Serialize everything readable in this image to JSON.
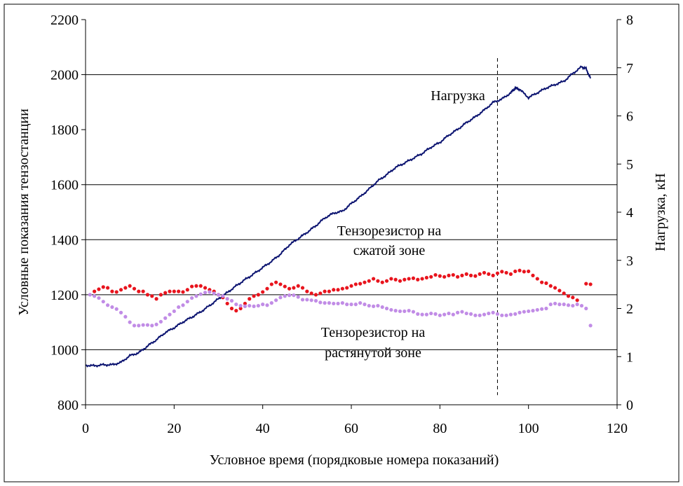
{
  "chart_data": {
    "type": "line",
    "title": "",
    "xlabel": "Условное время (порядковые номера показаний)",
    "ylabel_left": "Условные показания тензостанции",
    "ylabel_right": "Нагрузка, кН",
    "xlim": [
      0,
      120
    ],
    "ylim_left": [
      800,
      2200
    ],
    "ylim_right": [
      0,
      8
    ],
    "x_ticks": [
      0,
      20,
      40,
      60,
      80,
      100,
      120
    ],
    "y_left_ticks": [
      800,
      1000,
      1200,
      1400,
      1600,
      1800,
      2000,
      2200
    ],
    "y_right_ticks": [
      0,
      1,
      2,
      3,
      4,
      5,
      6,
      7,
      8
    ],
    "gridlines_left": [
      1000,
      1200,
      1400,
      1600,
      2000
    ],
    "marker_x": 93,
    "series": [
      {
        "name": "Нагрузка",
        "axis": "right",
        "style": "line",
        "color": "#0b1370",
        "points": [
          [
            0,
            0.82
          ],
          [
            2,
            0.81
          ],
          [
            4,
            0.83
          ],
          [
            6,
            0.83
          ],
          [
            8,
            0.88
          ],
          [
            10,
            1.02
          ],
          [
            12,
            1.08
          ],
          [
            14,
            1.22
          ],
          [
            16,
            1.35
          ],
          [
            18,
            1.5
          ],
          [
            20,
            1.6
          ],
          [
            22,
            1.72
          ],
          [
            24,
            1.82
          ],
          [
            26,
            1.93
          ],
          [
            28,
            2.06
          ],
          [
            30,
            2.2
          ],
          [
            32,
            2.33
          ],
          [
            34,
            2.47
          ],
          [
            36,
            2.6
          ],
          [
            38,
            2.72
          ],
          [
            40,
            2.85
          ],
          [
            42,
            2.98
          ],
          [
            44,
            3.13
          ],
          [
            46,
            3.32
          ],
          [
            48,
            3.45
          ],
          [
            50,
            3.58
          ],
          [
            52,
            3.72
          ],
          [
            54,
            3.88
          ],
          [
            56,
            3.98
          ],
          [
            58,
            4.02
          ],
          [
            60,
            4.18
          ],
          [
            62,
            4.32
          ],
          [
            64,
            4.48
          ],
          [
            66,
            4.65
          ],
          [
            68,
            4.78
          ],
          [
            70,
            4.93
          ],
          [
            72,
            5.02
          ],
          [
            74,
            5.12
          ],
          [
            76,
            5.22
          ],
          [
            78,
            5.35
          ],
          [
            80,
            5.45
          ],
          [
            82,
            5.6
          ],
          [
            84,
            5.72
          ],
          [
            86,
            5.86
          ],
          [
            88,
            5.98
          ],
          [
            90,
            6.12
          ],
          [
            92,
            6.28
          ],
          [
            94,
            6.35
          ],
          [
            96,
            6.48
          ],
          [
            97,
            6.58
          ],
          [
            98,
            6.55
          ],
          [
            100,
            6.38
          ],
          [
            102,
            6.48
          ],
          [
            104,
            6.58
          ],
          [
            106,
            6.65
          ],
          [
            108,
            6.72
          ],
          [
            110,
            6.88
          ],
          [
            112,
            7.02
          ],
          [
            113,
            6.98
          ],
          [
            114,
            6.78
          ]
        ]
      },
      {
        "name": "Тензорезистор на сжатой зоне",
        "axis": "left",
        "style": "markers",
        "color": "#e8141d",
        "points": [
          [
            2,
            1212
          ],
          [
            3,
            1220
          ],
          [
            4,
            1228
          ],
          [
            5,
            1225
          ],
          [
            6,
            1212
          ],
          [
            7,
            1210
          ],
          [
            8,
            1218
          ],
          [
            9,
            1225
          ],
          [
            10,
            1232
          ],
          [
            11,
            1222
          ],
          [
            12,
            1212
          ],
          [
            13,
            1212
          ],
          [
            14,
            1200
          ],
          [
            15,
            1195
          ],
          [
            16,
            1185
          ],
          [
            17,
            1200
          ],
          [
            18,
            1207
          ],
          [
            19,
            1212
          ],
          [
            20,
            1212
          ],
          [
            21,
            1212
          ],
          [
            22,
            1210
          ],
          [
            23,
            1218
          ],
          [
            24,
            1230
          ],
          [
            25,
            1232
          ],
          [
            26,
            1232
          ],
          [
            27,
            1225
          ],
          [
            28,
            1218
          ],
          [
            29,
            1212
          ],
          [
            30,
            1200
          ],
          [
            31,
            1190
          ],
          [
            32,
            1168
          ],
          [
            33,
            1150
          ],
          [
            34,
            1142
          ],
          [
            35,
            1150
          ],
          [
            36,
            1168
          ],
          [
            37,
            1185
          ],
          [
            38,
            1195
          ],
          [
            39,
            1200
          ],
          [
            40,
            1210
          ],
          [
            41,
            1222
          ],
          [
            42,
            1238
          ],
          [
            43,
            1245
          ],
          [
            44,
            1238
          ],
          [
            45,
            1230
          ],
          [
            46,
            1222
          ],
          [
            47,
            1225
          ],
          [
            48,
            1232
          ],
          [
            49,
            1225
          ],
          [
            50,
            1212
          ],
          [
            51,
            1205
          ],
          [
            52,
            1200
          ],
          [
            53,
            1205
          ],
          [
            54,
            1212
          ],
          [
            55,
            1212
          ],
          [
            56,
            1218
          ],
          [
            57,
            1218
          ],
          [
            58,
            1222
          ],
          [
            59,
            1225
          ],
          [
            60,
            1232
          ],
          [
            61,
            1238
          ],
          [
            62,
            1240
          ],
          [
            63,
            1245
          ],
          [
            64,
            1250
          ],
          [
            65,
            1258
          ],
          [
            66,
            1250
          ],
          [
            67,
            1245
          ],
          [
            68,
            1250
          ],
          [
            69,
            1258
          ],
          [
            70,
            1255
          ],
          [
            71,
            1250
          ],
          [
            72,
            1255
          ],
          [
            73,
            1258
          ],
          [
            74,
            1260
          ],
          [
            75,
            1255
          ],
          [
            76,
            1258
          ],
          [
            77,
            1262
          ],
          [
            78,
            1265
          ],
          [
            79,
            1272
          ],
          [
            80,
            1268
          ],
          [
            81,
            1265
          ],
          [
            82,
            1270
          ],
          [
            83,
            1272
          ],
          [
            84,
            1265
          ],
          [
            85,
            1270
          ],
          [
            86,
            1275
          ],
          [
            87,
            1270
          ],
          [
            88,
            1268
          ],
          [
            89,
            1275
          ],
          [
            90,
            1280
          ],
          [
            91,
            1275
          ],
          [
            92,
            1270
          ],
          [
            93,
            1278
          ],
          [
            94,
            1284
          ],
          [
            95,
            1280
          ],
          [
            96,
            1275
          ],
          [
            97,
            1285
          ],
          [
            98,
            1288
          ],
          [
            99,
            1284
          ],
          [
            100,
            1285
          ],
          [
            101,
            1270
          ],
          [
            102,
            1258
          ],
          [
            103,
            1245
          ],
          [
            104,
            1242
          ],
          [
            105,
            1232
          ],
          [
            106,
            1225
          ],
          [
            107,
            1215
          ],
          [
            108,
            1205
          ],
          [
            109,
            1195
          ],
          [
            110,
            1190
          ],
          [
            111,
            1180
          ],
          [
            113,
            1240
          ],
          [
            114,
            1238
          ]
        ]
      },
      {
        "name": "Тензорезистор на растянутой зоне",
        "axis": "left",
        "style": "markers",
        "color": "#c18ce6",
        "points": [
          [
            1,
            1200
          ],
          [
            2,
            1195
          ],
          [
            3,
            1188
          ],
          [
            4,
            1175
          ],
          [
            5,
            1162
          ],
          [
            6,
            1155
          ],
          [
            7,
            1148
          ],
          [
            8,
            1135
          ],
          [
            9,
            1120
          ],
          [
            10,
            1100
          ],
          [
            11,
            1088
          ],
          [
            12,
            1088
          ],
          [
            13,
            1090
          ],
          [
            14,
            1090
          ],
          [
            15,
            1088
          ],
          [
            16,
            1092
          ],
          [
            17,
            1102
          ],
          [
            18,
            1115
          ],
          [
            19,
            1128
          ],
          [
            20,
            1140
          ],
          [
            21,
            1155
          ],
          [
            22,
            1162
          ],
          [
            23,
            1175
          ],
          [
            24,
            1188
          ],
          [
            25,
            1195
          ],
          [
            26,
            1202
          ],
          [
            27,
            1208
          ],
          [
            28,
            1210
          ],
          [
            29,
            1205
          ],
          [
            30,
            1200
          ],
          [
            31,
            1195
          ],
          [
            32,
            1185
          ],
          [
            33,
            1178
          ],
          [
            34,
            1165
          ],
          [
            35,
            1160
          ],
          [
            36,
            1158
          ],
          [
            37,
            1160
          ],
          [
            38,
            1158
          ],
          [
            39,
            1160
          ],
          [
            40,
            1165
          ],
          [
            41,
            1162
          ],
          [
            42,
            1170
          ],
          [
            43,
            1180
          ],
          [
            44,
            1190
          ],
          [
            45,
            1195
          ],
          [
            46,
            1198
          ],
          [
            47,
            1198
          ],
          [
            48,
            1192
          ],
          [
            49,
            1182
          ],
          [
            50,
            1182
          ],
          [
            51,
            1180
          ],
          [
            52,
            1178
          ],
          [
            53,
            1172
          ],
          [
            54,
            1170
          ],
          [
            55,
            1170
          ],
          [
            56,
            1168
          ],
          [
            57,
            1168
          ],
          [
            58,
            1170
          ],
          [
            59,
            1165
          ],
          [
            60,
            1165
          ],
          [
            61,
            1165
          ],
          [
            62,
            1170
          ],
          [
            63,
            1165
          ],
          [
            64,
            1160
          ],
          [
            65,
            1158
          ],
          [
            66,
            1160
          ],
          [
            67,
            1155
          ],
          [
            68,
            1150
          ],
          [
            69,
            1145
          ],
          [
            70,
            1142
          ],
          [
            71,
            1140
          ],
          [
            72,
            1140
          ],
          [
            73,
            1142
          ],
          [
            74,
            1138
          ],
          [
            75,
            1130
          ],
          [
            76,
            1128
          ],
          [
            77,
            1128
          ],
          [
            78,
            1132
          ],
          [
            79,
            1130
          ],
          [
            80,
            1125
          ],
          [
            81,
            1128
          ],
          [
            82,
            1132
          ],
          [
            83,
            1128
          ],
          [
            84,
            1135
          ],
          [
            85,
            1138
          ],
          [
            86,
            1132
          ],
          [
            87,
            1130
          ],
          [
            88,
            1125
          ],
          [
            89,
            1125
          ],
          [
            90,
            1128
          ],
          [
            91,
            1132
          ],
          [
            92,
            1135
          ],
          [
            93,
            1130
          ],
          [
            94,
            1125
          ],
          [
            95,
            1125
          ],
          [
            96,
            1128
          ],
          [
            97,
            1130
          ],
          [
            98,
            1135
          ],
          [
            99,
            1138
          ],
          [
            100,
            1140
          ],
          [
            101,
            1142
          ],
          [
            102,
            1145
          ],
          [
            103,
            1148
          ],
          [
            104,
            1150
          ],
          [
            105,
            1165
          ],
          [
            106,
            1168
          ],
          [
            107,
            1165
          ],
          [
            108,
            1165
          ],
          [
            109,
            1162
          ],
          [
            110,
            1160
          ],
          [
            111,
            1165
          ],
          [
            112,
            1160
          ],
          [
            113,
            1150
          ],
          [
            114,
            1088
          ]
        ]
      }
    ],
    "annotations": {
      "load_label": "Нагрузка",
      "compressed_line1": "Тензорезистор на",
      "compressed_line2": "сжатой зоне",
      "tension_line1": "Тензорезистор на",
      "tension_line2": "растянутой зоне"
    }
  }
}
